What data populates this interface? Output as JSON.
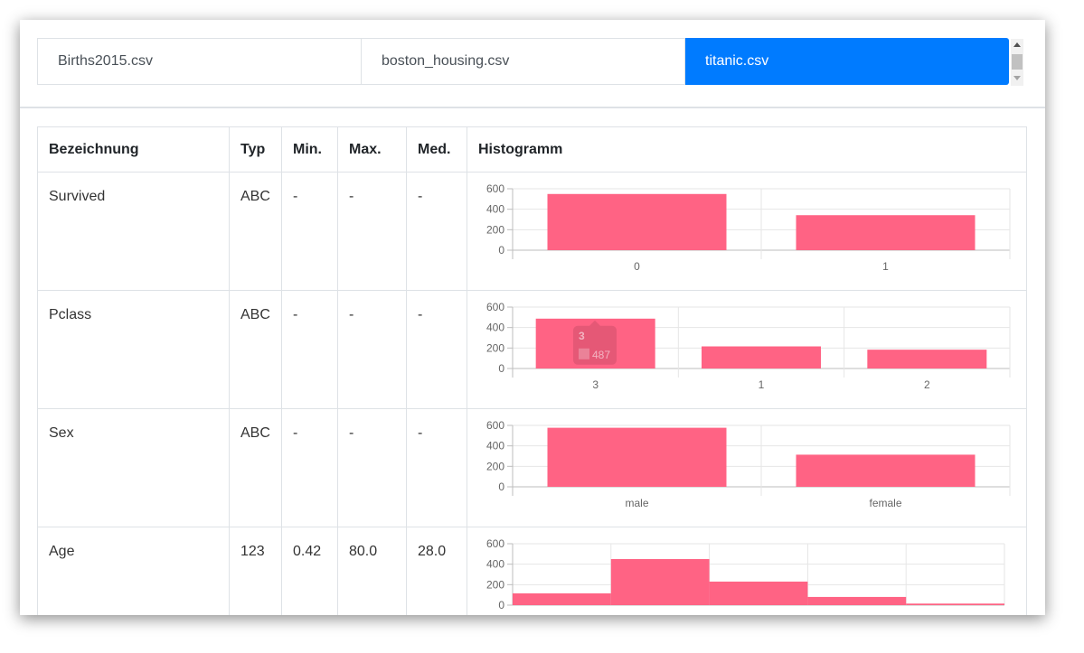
{
  "tabs": [
    {
      "label": "Births2015.csv",
      "active": false
    },
    {
      "label": "boston_housing.csv",
      "active": false
    },
    {
      "label": "titanic.csv",
      "active": true
    }
  ],
  "table": {
    "headers": [
      "Bezeichnung",
      "Typ",
      "Min.",
      "Max.",
      "Med.",
      "Histogramm"
    ],
    "rows": [
      {
        "name": "Survived",
        "type": "ABC",
        "min": "-",
        "max": "-",
        "med": "-"
      },
      {
        "name": "Pclass",
        "type": "ABC",
        "min": "-",
        "max": "-",
        "med": "-"
      },
      {
        "name": "Sex",
        "type": "ABC",
        "min": "-",
        "max": "-",
        "med": "-"
      },
      {
        "name": "Age",
        "type": "123",
        "min": "0.42",
        "max": "80.0",
        "med": "28.0"
      }
    ]
  },
  "colors": {
    "bar": "#ff6384",
    "accent": "#007bff",
    "grid": "#e6e6e6"
  },
  "chart_data": [
    {
      "type": "bar",
      "categories": [
        "0",
        "1"
      ],
      "values": [
        549,
        342
      ],
      "ylim": [
        0,
        600
      ],
      "yticks": [
        0,
        200,
        400,
        600
      ],
      "grid": true
    },
    {
      "type": "bar",
      "categories": [
        "3",
        "1",
        "2"
      ],
      "values": [
        487,
        216,
        184
      ],
      "ylim": [
        0,
        600
      ],
      "yticks": [
        0,
        200,
        400,
        600
      ],
      "grid": true,
      "tooltip": {
        "title": "3",
        "value": "487"
      }
    },
    {
      "type": "bar",
      "categories": [
        "male",
        "female"
      ],
      "values": [
        577,
        314
      ],
      "ylim": [
        0,
        600
      ],
      "yticks": [
        0,
        200,
        400,
        600
      ],
      "grid": true
    },
    {
      "type": "bar",
      "categories": [
        "",
        "",
        "",
        "",
        ""
      ],
      "values": [
        115,
        450,
        230,
        80,
        15
      ],
      "ylim": [
        0,
        600
      ],
      "yticks": [
        0,
        200,
        400,
        600
      ],
      "grid": true,
      "histogram": true
    }
  ]
}
